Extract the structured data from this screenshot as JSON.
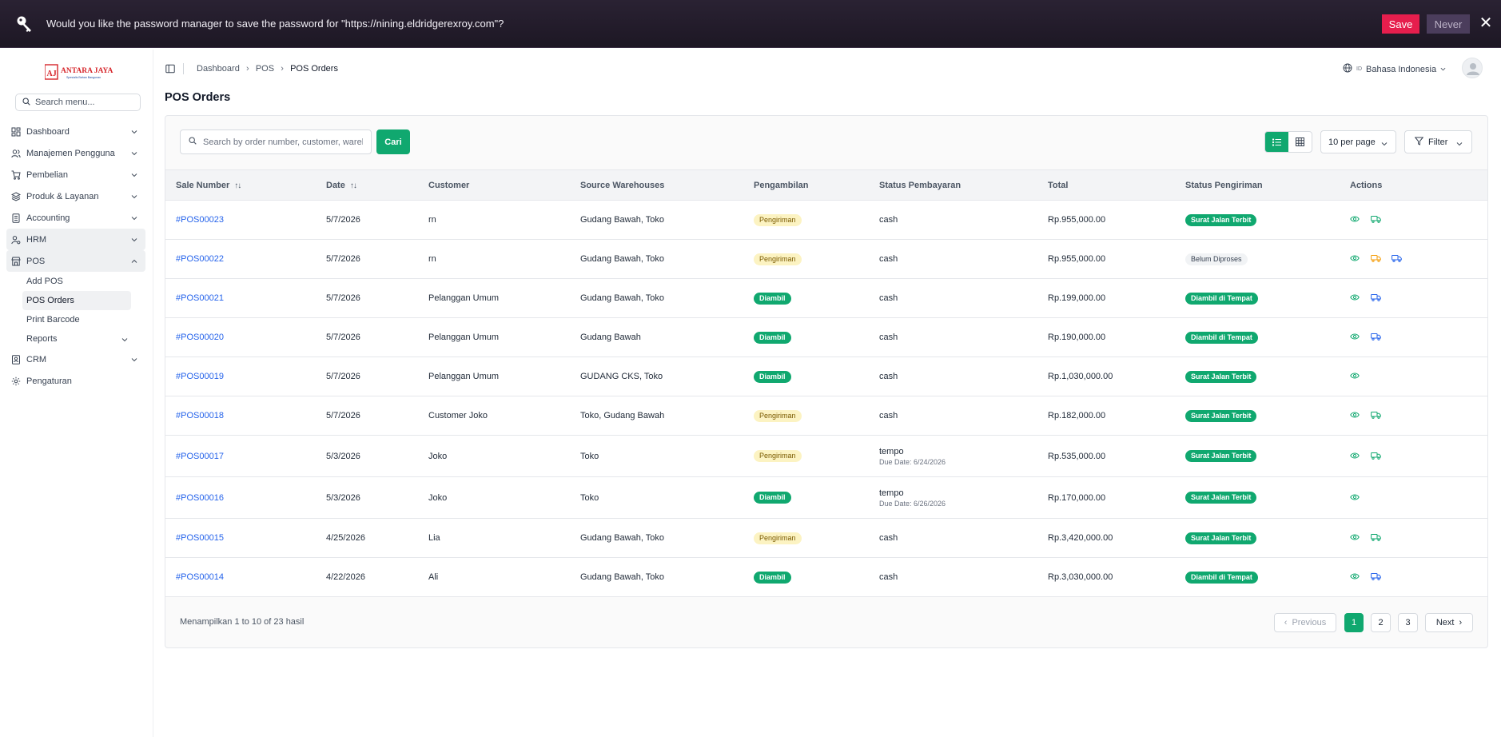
{
  "password_bar": {
    "message": "Would you like the password manager to save the password for \"https://nining.eldridgerexroy.com\"?",
    "save_label": "Save",
    "never_label": "Never"
  },
  "sidebar": {
    "logo_text": "ANTARA JAYA",
    "logo_sub": "Spesialis Bahan Bangunan",
    "search_placeholder": "Search menu...",
    "items": [
      {
        "label": "Dashboard",
        "icon": "dashboard-icon"
      },
      {
        "label": "Manajemen Pengguna",
        "icon": "users-icon"
      },
      {
        "label": "Pembelian",
        "icon": "cart-icon"
      },
      {
        "label": "Produk & Layanan",
        "icon": "layers-icon"
      },
      {
        "label": "Accounting",
        "icon": "ledger-icon"
      },
      {
        "label": "HRM",
        "icon": "user-gear-icon"
      },
      {
        "label": "POS",
        "icon": "store-icon"
      },
      {
        "label": "CRM",
        "icon": "contact-icon"
      },
      {
        "label": "Pengaturan",
        "icon": "gear-icon"
      }
    ],
    "pos_sub": [
      {
        "label": "Add POS"
      },
      {
        "label": "POS Orders"
      },
      {
        "label": "Print Barcode"
      },
      {
        "label": "Reports"
      }
    ]
  },
  "header": {
    "breadcrumbs": [
      "Dashboard",
      "POS",
      "POS Orders"
    ],
    "lang_code": "ID",
    "lang_label": "Bahasa Indonesia"
  },
  "page": {
    "title": "POS Orders",
    "search_placeholder": "Search by order number, customer, warehouse...",
    "search_button": "Cari",
    "per_page": "10 per page",
    "filter_label": "Filter"
  },
  "table": {
    "columns": [
      "Sale Number",
      "Date",
      "Customer",
      "Source Warehouses",
      "Pengambilan",
      "Status Pembayaran",
      "Total",
      "Status Pengiriman",
      "Actions"
    ],
    "rows": [
      {
        "sale": "#POS00023",
        "date": "5/7/2026",
        "customer": "rn",
        "warehouse": "Gudang Bawah, Toko",
        "pickup": "Pengiriman",
        "payment": "cash",
        "due": "",
        "total": "Rp.955,000.00",
        "shipping": "Surat Jalan Terbit"
      },
      {
        "sale": "#POS00022",
        "date": "5/7/2026",
        "customer": "rn",
        "warehouse": "Gudang Bawah, Toko",
        "pickup": "Pengiriman",
        "payment": "cash",
        "due": "",
        "total": "Rp.955,000.00",
        "shipping": "Belum Diproses"
      },
      {
        "sale": "#POS00021",
        "date": "5/7/2026",
        "customer": "Pelanggan Umum",
        "warehouse": "Gudang Bawah, Toko",
        "pickup": "Diambil",
        "payment": "cash",
        "due": "",
        "total": "Rp.199,000.00",
        "shipping": "Diambil di Tempat"
      },
      {
        "sale": "#POS00020",
        "date": "5/7/2026",
        "customer": "Pelanggan Umum",
        "warehouse": "Gudang Bawah",
        "pickup": "Diambil",
        "payment": "cash",
        "due": "",
        "total": "Rp.190,000.00",
        "shipping": "Diambil di Tempat"
      },
      {
        "sale": "#POS00019",
        "date": "5/7/2026",
        "customer": "Pelanggan Umum",
        "warehouse": "GUDANG CKS, Toko",
        "pickup": "Diambil",
        "payment": "cash",
        "due": "",
        "total": "Rp.1,030,000.00",
        "shipping": "Surat Jalan Terbit"
      },
      {
        "sale": "#POS00018",
        "date": "5/7/2026",
        "customer": "Customer Joko",
        "warehouse": "Toko, Gudang Bawah",
        "pickup": "Pengiriman",
        "payment": "cash",
        "due": "",
        "total": "Rp.182,000.00",
        "shipping": "Surat Jalan Terbit"
      },
      {
        "sale": "#POS00017",
        "date": "5/3/2026",
        "customer": "Joko",
        "warehouse": "Toko",
        "pickup": "Pengiriman",
        "payment": "tempo",
        "due": "Due Date: 6/24/2026",
        "total": "Rp.535,000.00",
        "shipping": "Surat Jalan Terbit"
      },
      {
        "sale": "#POS00016",
        "date": "5/3/2026",
        "customer": "Joko",
        "warehouse": "Toko",
        "pickup": "Diambil",
        "payment": "tempo",
        "due": "Due Date: 6/26/2026",
        "total": "Rp.170,000.00",
        "shipping": "Surat Jalan Terbit"
      },
      {
        "sale": "#POS00015",
        "date": "4/25/2026",
        "customer": "Lia",
        "warehouse": "Gudang Bawah, Toko",
        "pickup": "Pengiriman",
        "payment": "cash",
        "due": "",
        "total": "Rp.3,420,000.00",
        "shipping": "Surat Jalan Terbit"
      },
      {
        "sale": "#POS00014",
        "date": "4/22/2026",
        "customer": "Ali",
        "warehouse": "Gudang Bawah, Toko",
        "pickup": "Diambil",
        "payment": "cash",
        "due": "",
        "total": "Rp.3,030,000.00",
        "shipping": "Diambil di Tempat"
      }
    ]
  },
  "footer": {
    "showing": "Menampilkan 1 to 10 of 23 hasil",
    "prev": "Previous",
    "pages": [
      "1",
      "2",
      "3"
    ],
    "next": "Next"
  },
  "colors": {
    "accent": "#10a86f",
    "link": "#2563eb",
    "save": "#e61e4d"
  }
}
